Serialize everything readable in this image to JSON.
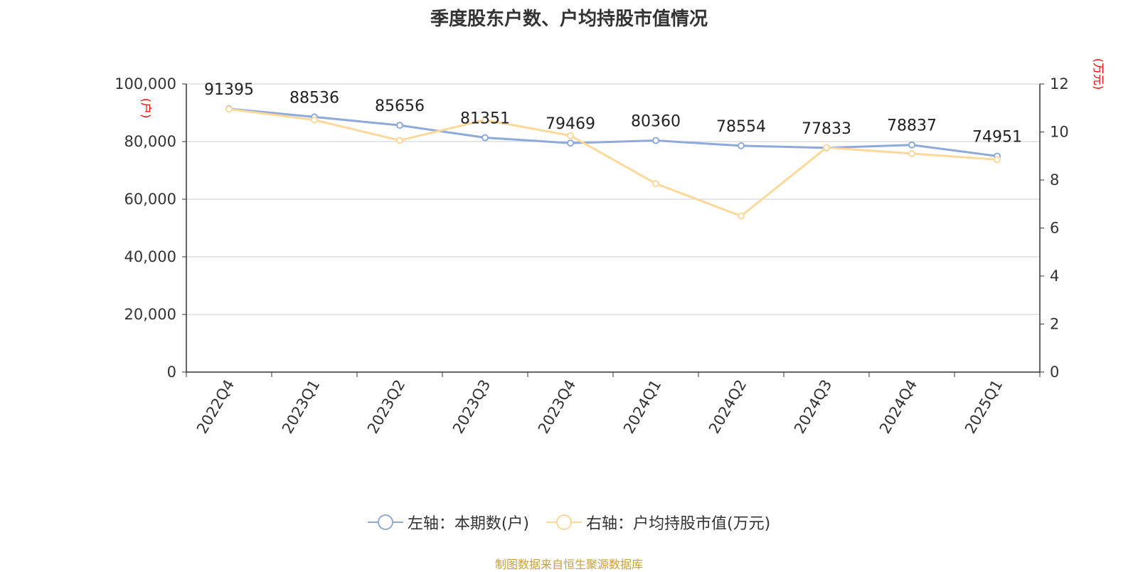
{
  "title": "季度股东户数、户均持股市值情况",
  "source": "制图数据来自恒生聚源数据库",
  "colors": {
    "series1": "#8eaadb",
    "series2": "#fcd89a",
    "axis_unit": "#ff0000",
    "source": "#c8a13b",
    "grid": "#cccccc",
    "axis": "#333333"
  },
  "legend": [
    {
      "label": "左轴：本期数(户)",
      "color": "#8eaadb"
    },
    {
      "label": "右轴：户均持股市值(万元)",
      "color": "#fcd89a"
    }
  ],
  "chart_data": {
    "type": "line",
    "title": "季度股东户数、户均持股市值情况",
    "x": [
      "2022Q4",
      "2023Q1",
      "2023Q2",
      "2023Q3",
      "2023Q4",
      "2024Q1",
      "2024Q2",
      "2024Q3",
      "2024Q4",
      "2025Q1"
    ],
    "series": [
      {
        "name": "左轴：本期数(户)",
        "axis": "left",
        "values": [
          91395,
          88536,
          85656,
          81351,
          79469,
          80360,
          78554,
          77833,
          78837,
          74951
        ],
        "data_labels": [
          "91395",
          "88536",
          "85656",
          "81351",
          "79469",
          "80360",
          "78554",
          "77833",
          "78837",
          "74951"
        ]
      },
      {
        "name": "右轴：户均持股市值(万元)",
        "axis": "right",
        "values": [
          10.95,
          10.5,
          9.65,
          10.5,
          9.85,
          7.85,
          6.5,
          9.35,
          9.1,
          8.85
        ]
      }
    ],
    "y_left": {
      "unit": "(户)",
      "range": [
        0,
        100000
      ],
      "ticks": [
        "0",
        "20,000",
        "40,000",
        "60,000",
        "80,000",
        "100,000"
      ]
    },
    "y_right": {
      "unit": "(万元)",
      "range": [
        0,
        12
      ],
      "ticks": [
        "0",
        "2",
        "4",
        "6",
        "8",
        "10",
        "12"
      ]
    },
    "grid": true,
    "legend_position": "bottom"
  }
}
